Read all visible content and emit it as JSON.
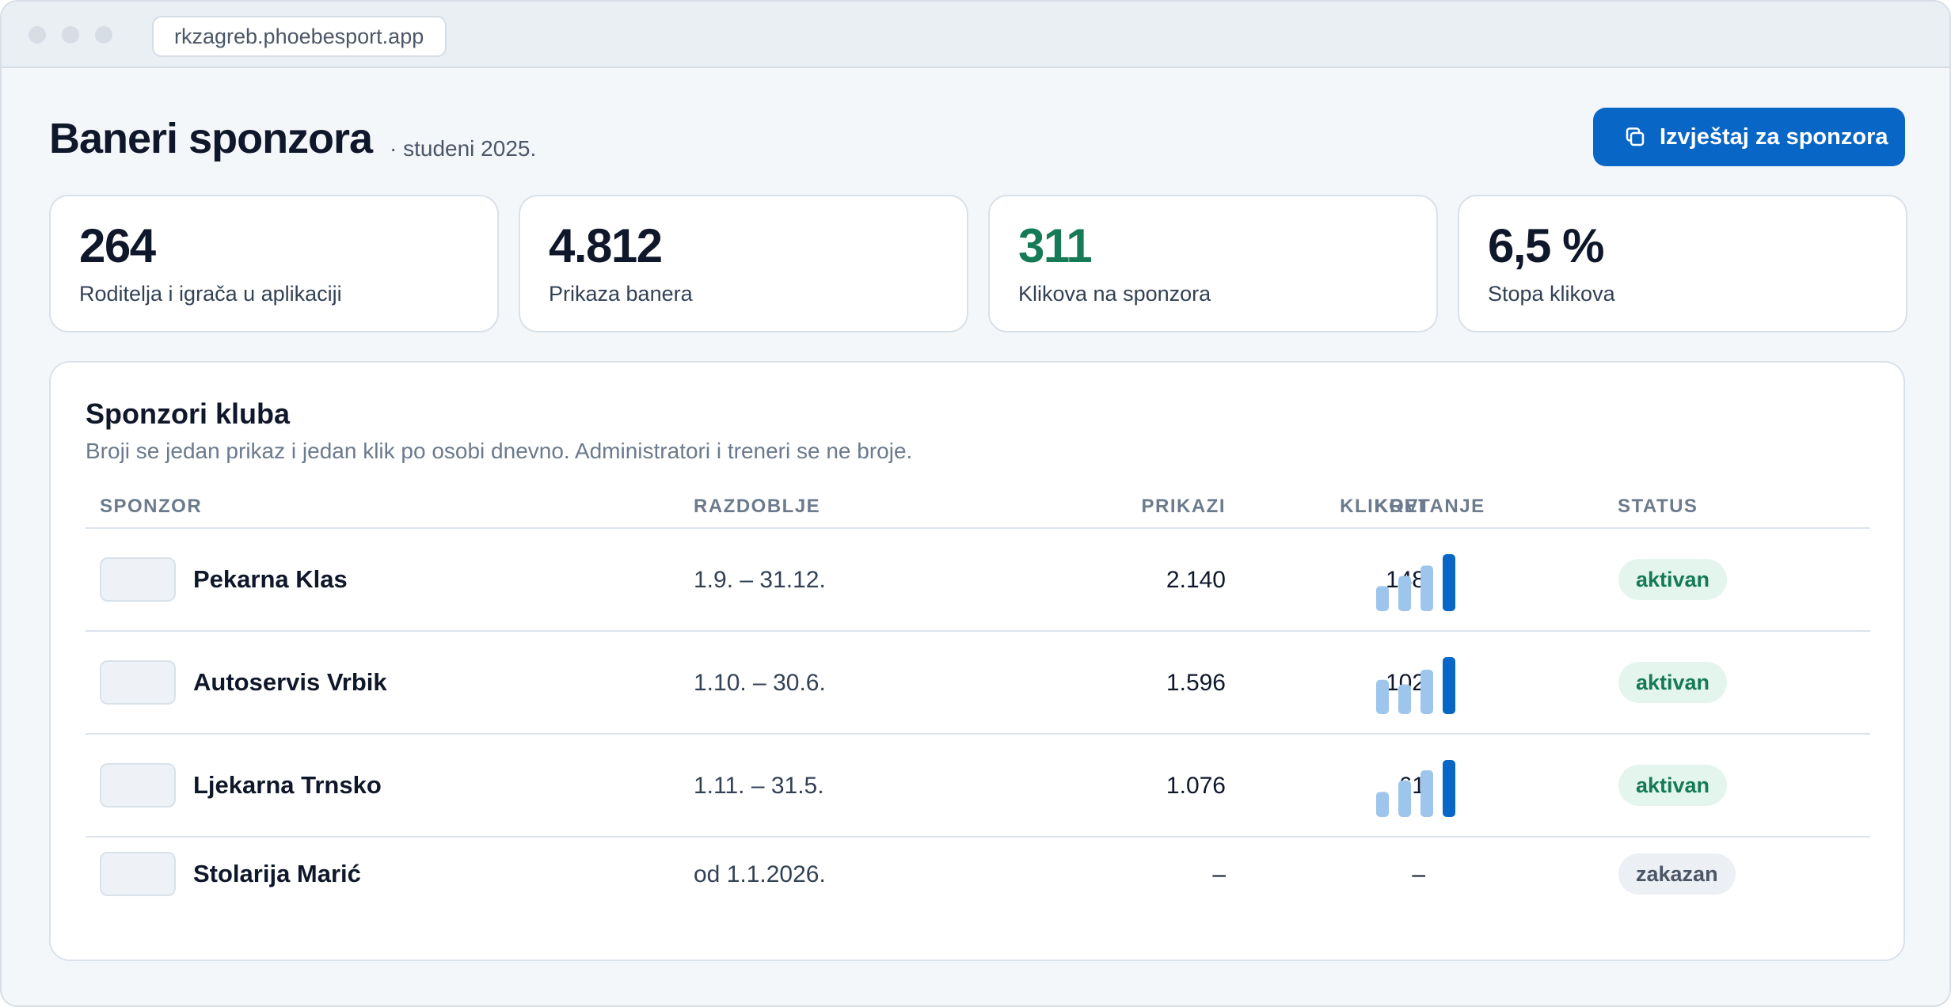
{
  "browser": {
    "url": "rkzagreb.phoebesport.app"
  },
  "header": {
    "title": "Baneri sponzora",
    "subtitle": "· studeni 2025.",
    "report_button_label": "Izvještaj za sponzora",
    "report_button_icon": "copy-icon"
  },
  "stats": [
    {
      "value": "264",
      "label": "Roditelja i igrača u aplikaciji"
    },
    {
      "value": "4.812",
      "label": "Prikaza banera"
    },
    {
      "value": "311",
      "label": "Klikova na sponzora",
      "color": "#157a55"
    },
    {
      "value": "6,5 %",
      "label": "Stopa klikova"
    }
  ],
  "sponsors": {
    "title": "Sponzori kluba",
    "description": "Broji se jedan prikaz i jedan klik po osobi dnevno. Administratori i treneri se ne broje.",
    "columns": {
      "sponsor": "SPONZOR",
      "period": "RAZDOBLJE",
      "views": "PRIKAZI",
      "clicks": "KLIKOVI",
      "trend": "KRETANJE",
      "status": "STATUS"
    },
    "rows": [
      {
        "name": "Pekarna Klas",
        "period": "1.9. – 31.12.",
        "views": "2.140",
        "clicks": "148",
        "trend": [
          0.44,
          0.62,
          0.8,
          1.0
        ],
        "status": "aktivan"
      },
      {
        "name": "Autoservis Vrbik",
        "period": "1.10. – 30.6.",
        "views": "1.596",
        "clicks": "102",
        "trend": [
          0.6,
          0.52,
          0.78,
          1.0
        ],
        "status": "aktivan"
      },
      {
        "name": "Ljekarna Trnsko",
        "period": "1.11. – 31.5.",
        "views": "1.076",
        "clicks": "61",
        "trend": [
          0.44,
          0.64,
          0.82,
          1.0
        ],
        "status": "aktivan"
      },
      {
        "name": "Stolarija Marić",
        "period": "od 1.1.2026.",
        "views": "–",
        "clicks": "–",
        "trend": [],
        "status": "zakazan"
      }
    ]
  },
  "colors": {
    "accent": "#0866c6",
    "bar_light": "#9ec6ec",
    "bar_strong": "#0866c6",
    "status_active": "#157a55"
  }
}
